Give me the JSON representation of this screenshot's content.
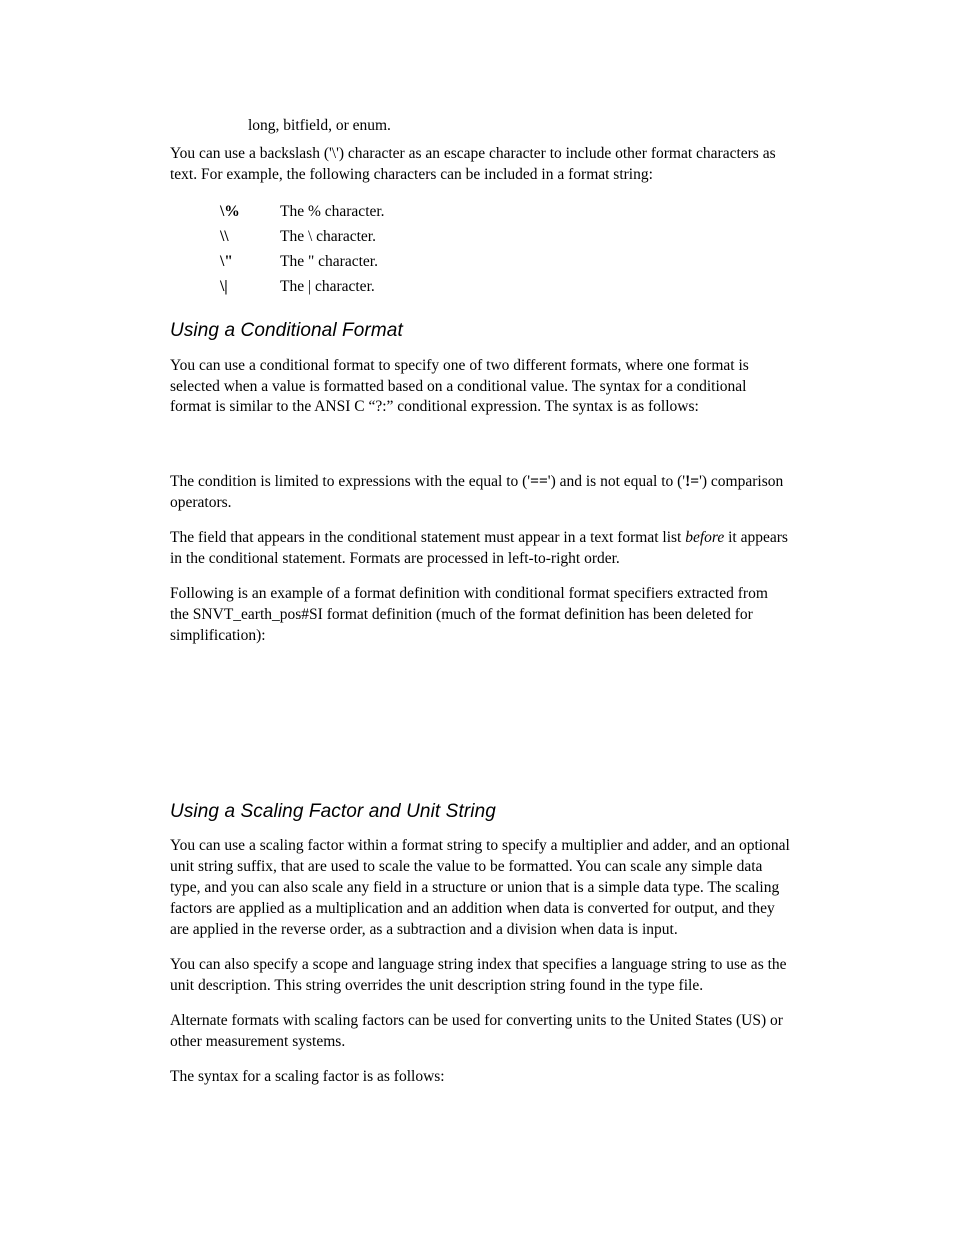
{
  "hanging": "long, bitfield, or enum.",
  "p_backslash": "You can use a backslash ('\\') character as an escape character to include other format characters as text.  For example, the following characters can be included in a format string:",
  "escapes": [
    {
      "sym": "\\%",
      "desc": "The % character."
    },
    {
      "sym": "\\\\",
      "desc": "The \\ character."
    },
    {
      "sym": "\\\"",
      "desc": "The \" character."
    },
    {
      "sym": "\\|",
      "desc": "The | character."
    }
  ],
  "h_conditional": "Using a Conditional Format",
  "p_cond_1": "You can use a conditional format to specify one of two different formats, where one format is selected when a value is formatted based on a conditional value.  The syntax for a conditional format is similar to the ANSI C “?:” conditional expression.  The syntax is as follows:",
  "p_cond_2_a": "The condition is limited to expressions with the equal to ('",
  "p_cond_2_eq": "==",
  "p_cond_2_b": "') and is not equal to ('",
  "p_cond_2_ne": "!=",
  "p_cond_2_c": "') comparison operators.",
  "p_cond_3_a": "The field that appears in the conditional statement must appear in a text format list ",
  "p_cond_3_em": "before",
  "p_cond_3_b": " it appears in the conditional statement.  Formats are processed in left-to-right order.",
  "p_cond_4": "Following is an example of a format definition with conditional format specifiers extracted from the SNVT_earth_pos#SI format definition (much of the format definition has been deleted for simplification):",
  "h_scaling": "Using a Scaling Factor and Unit String",
  "p_scale_1": "You can use a scaling factor within a format string to specify a multiplier and adder, and an optional unit string suffix, that are used to scale the value to be formatted.  You can scale any simple data type, and you can also scale any field in a structure or union that is a simple data type.  The scaling factors are applied as a multiplication and an addition when data is converted for output, and they are applied in the reverse order, as a subtraction and a division when data is input.",
  "p_scale_2": "You can also specify a scope and language string index that specifies a language string to use as the unit description.  This string overrides the unit description string found in the type file.",
  "p_scale_3": "Alternate formats with scaling factors can be used for converting units to the United States (US) or other measurement systems.",
  "p_scale_4": "The syntax for a scaling factor is as follows:"
}
